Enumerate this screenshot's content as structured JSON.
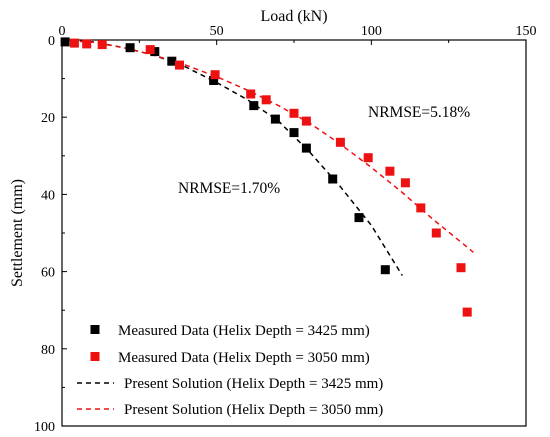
{
  "chart_data": {
    "type": "scatter",
    "xlabel": "Load (kN)",
    "ylabel": "Settlement (mm)",
    "xlim": [
      0,
      150
    ],
    "ylim": [
      0,
      100
    ],
    "y_inverted": true,
    "x_axis_position": "top",
    "x_ticks": [
      "0",
      "50",
      "100",
      "150"
    ],
    "y_ticks": [
      "0",
      "20",
      "40",
      "60",
      "80",
      "100"
    ],
    "legend_position": "bottom-left",
    "annotations": [
      {
        "text": "NRMSE=5.18%",
        "x": 97,
        "y": 19
      },
      {
        "text": "NRMSE=1.70%",
        "x": 37,
        "y": 38
      }
    ],
    "series": [
      {
        "name": "Measured Data (Helix Depth = 3425 mm)",
        "kind": "scatter",
        "color": "#000000",
        "points": [
          [
            1,
            0.5
          ],
          [
            22,
            2
          ],
          [
            30,
            3
          ],
          [
            35.5,
            5.5
          ],
          [
            49,
            10.5
          ],
          [
            62,
            17
          ],
          [
            69,
            20.5
          ],
          [
            75,
            24
          ],
          [
            79,
            28
          ],
          [
            87.5,
            36
          ],
          [
            96,
            46
          ],
          [
            104.5,
            59.5
          ]
        ]
      },
      {
        "name": "Measured Data (Helix Depth = 3050 mm)",
        "kind": "scatter",
        "color": "#ee1111",
        "points": [
          [
            4,
            0.8
          ],
          [
            8,
            1
          ],
          [
            13,
            1.2
          ],
          [
            28.5,
            2.5
          ],
          [
            38,
            6.5
          ],
          [
            49.5,
            9
          ],
          [
            61,
            14
          ],
          [
            66,
            15.5
          ],
          [
            75,
            19
          ],
          [
            79,
            21
          ],
          [
            90,
            26.5
          ],
          [
            99,
            30.5
          ],
          [
            106,
            34
          ],
          [
            111,
            37
          ],
          [
            116,
            43.5
          ],
          [
            121,
            50
          ],
          [
            129,
            59
          ],
          [
            131,
            70.5
          ]
        ]
      },
      {
        "name": "Present Solution (Helix Depth = 3425 mm)",
        "kind": "line",
        "dash": true,
        "color": "#000000",
        "points": [
          [
            0,
            0
          ],
          [
            10,
            0.5
          ],
          [
            20,
            2
          ],
          [
            30,
            4
          ],
          [
            40,
            7
          ],
          [
            50,
            11
          ],
          [
            60,
            15.5
          ],
          [
            70,
            21
          ],
          [
            80,
            29
          ],
          [
            90,
            38
          ],
          [
            100,
            48
          ],
          [
            110,
            61
          ]
        ]
      },
      {
        "name": "Present Solution (Helix Depth = 3050 mm)",
        "kind": "line",
        "dash": true,
        "color": "#ee1111",
        "points": [
          [
            0,
            0
          ],
          [
            10,
            0.6
          ],
          [
            20,
            2
          ],
          [
            30,
            4
          ],
          [
            40,
            6.5
          ],
          [
            50,
            9.5
          ],
          [
            60,
            13
          ],
          [
            70,
            17
          ],
          [
            80,
            21.5
          ],
          [
            90,
            27
          ],
          [
            100,
            33
          ],
          [
            110,
            39.5
          ],
          [
            120,
            46.5
          ],
          [
            130,
            53
          ],
          [
            133,
            55
          ]
        ]
      }
    ]
  }
}
